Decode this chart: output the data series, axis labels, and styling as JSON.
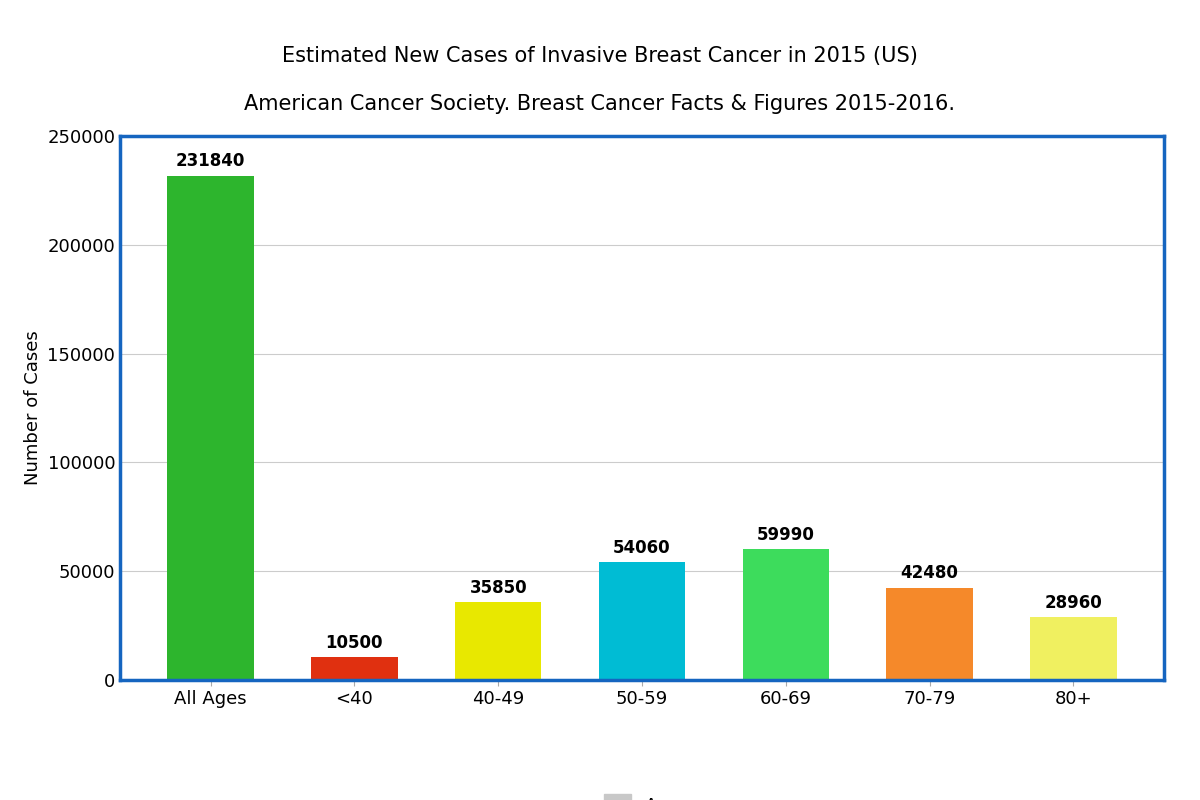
{
  "title_line1": "Estimated New Cases of Invasive Breast Cancer in 2015 (US)",
  "title_line2": "American Cancer Society. Breast Cancer Facts & Figures 2015-2016.",
  "ylabel": "Number of Cases",
  "categories": [
    "All Ages",
    "<40",
    "40-49",
    "50-59",
    "60-69",
    "70-79",
    "80+"
  ],
  "values": [
    231840,
    10500,
    35850,
    54060,
    59990,
    42480,
    28960
  ],
  "bar_colors": [
    "#2db52d",
    "#e03010",
    "#e8e800",
    "#00bcd4",
    "#3ddc5c",
    "#f5892a",
    "#f0f060"
  ],
  "ylim": [
    0,
    250000
  ],
  "yticks": [
    0,
    50000,
    100000,
    150000,
    200000,
    250000
  ],
  "legend_label": "Age",
  "legend_color": "#c8c8c8",
  "border_color": "#1565C0",
  "background_color": "#ffffff",
  "label_fontsize": 13,
  "title_fontsize": 15,
  "tick_fontsize": 13,
  "bar_label_fontsize": 12
}
